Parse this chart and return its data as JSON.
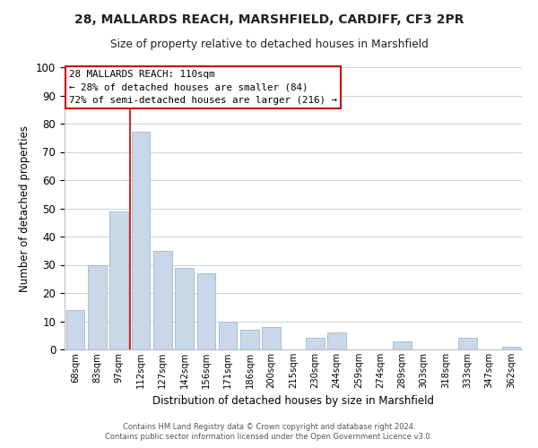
{
  "title": "28, MALLARDS REACH, MARSHFIELD, CARDIFF, CF3 2PR",
  "subtitle": "Size of property relative to detached houses in Marshfield",
  "xlabel": "Distribution of detached houses by size in Marshfield",
  "ylabel": "Number of detached properties",
  "bar_color": "#c8d8e8",
  "bar_edge_color": "#a0b8cc",
  "categories": [
    "68sqm",
    "83sqm",
    "97sqm",
    "112sqm",
    "127sqm",
    "142sqm",
    "156sqm",
    "171sqm",
    "186sqm",
    "200sqm",
    "215sqm",
    "230sqm",
    "244sqm",
    "259sqm",
    "274sqm",
    "289sqm",
    "303sqm",
    "318sqm",
    "333sqm",
    "347sqm",
    "362sqm"
  ],
  "values": [
    14,
    30,
    49,
    77,
    35,
    29,
    27,
    10,
    7,
    8,
    0,
    4,
    6,
    0,
    0,
    3,
    0,
    0,
    4,
    0,
    1
  ],
  "ylim": [
    0,
    100
  ],
  "yticks": [
    0,
    10,
    20,
    30,
    40,
    50,
    60,
    70,
    80,
    90,
    100
  ],
  "vline_index": 3,
  "vline_color": "#cc0000",
  "annotation_title": "28 MALLARDS REACH: 110sqm",
  "annotation_line1": "← 28% of detached houses are smaller (84)",
  "annotation_line2": "72% of semi-detached houses are larger (216) →",
  "annotation_box_color": "#ffffff",
  "annotation_box_edge": "#cc0000",
  "footer1": "Contains HM Land Registry data © Crown copyright and database right 2024.",
  "footer2": "Contains public sector information licensed under the Open Government Licence v3.0.",
  "background_color": "#ffffff",
  "grid_color": "#c8d4e0"
}
